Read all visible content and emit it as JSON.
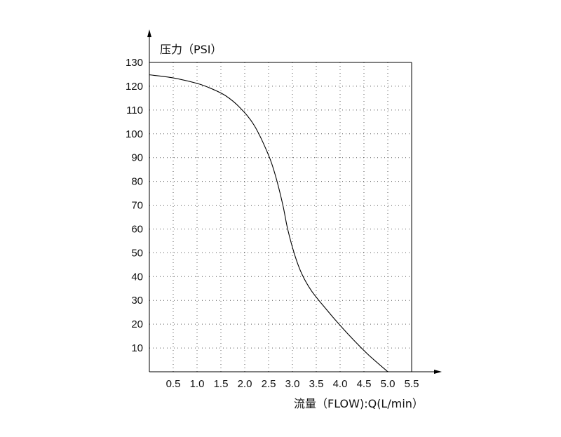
{
  "chart_data": {
    "type": "line",
    "ylabel": "压力（PSI）",
    "xlabel": "流量（FLOW):Q(L/min）",
    "xlim": [
      0,
      5.5
    ],
    "ylim": [
      0,
      130
    ],
    "x_ticks": [
      0.5,
      1.0,
      1.5,
      2.0,
      2.5,
      3.0,
      3.5,
      4.0,
      4.5,
      5.0,
      5.5
    ],
    "x_tick_labels": [
      "0.5",
      "1.0",
      "1.5",
      "2.0",
      "2.5",
      "3.0",
      "3.5",
      "4.0",
      "4.5",
      "5.0",
      "5.5"
    ],
    "y_ticks": [
      10,
      20,
      30,
      40,
      50,
      60,
      70,
      80,
      90,
      100,
      110,
      120,
      130
    ],
    "y_tick_labels": [
      "10",
      "20",
      "30",
      "40",
      "50",
      "60",
      "70",
      "80",
      "90",
      "100",
      "110",
      "120",
      "130"
    ],
    "grid": true,
    "grid_style": "dotted",
    "colors": {
      "line": "#000000",
      "axis": "#000000",
      "grid": "#555555"
    },
    "series": [
      {
        "x": [
          0,
          0.5,
          1.0,
          1.3,
          1.6,
          1.9,
          2.2,
          2.5,
          2.65,
          2.8,
          2.9,
          3.05,
          3.2,
          3.4,
          3.7,
          4.0,
          4.3,
          4.6,
          5.0
        ],
        "y": [
          124.8,
          123.5,
          121.2,
          119.0,
          116.0,
          111.0,
          103.5,
          91.0,
          82.0,
          70.0,
          60.0,
          49.0,
          41.0,
          34.0,
          26.5,
          19.5,
          13.0,
          7.0,
          0
        ]
      }
    ]
  }
}
